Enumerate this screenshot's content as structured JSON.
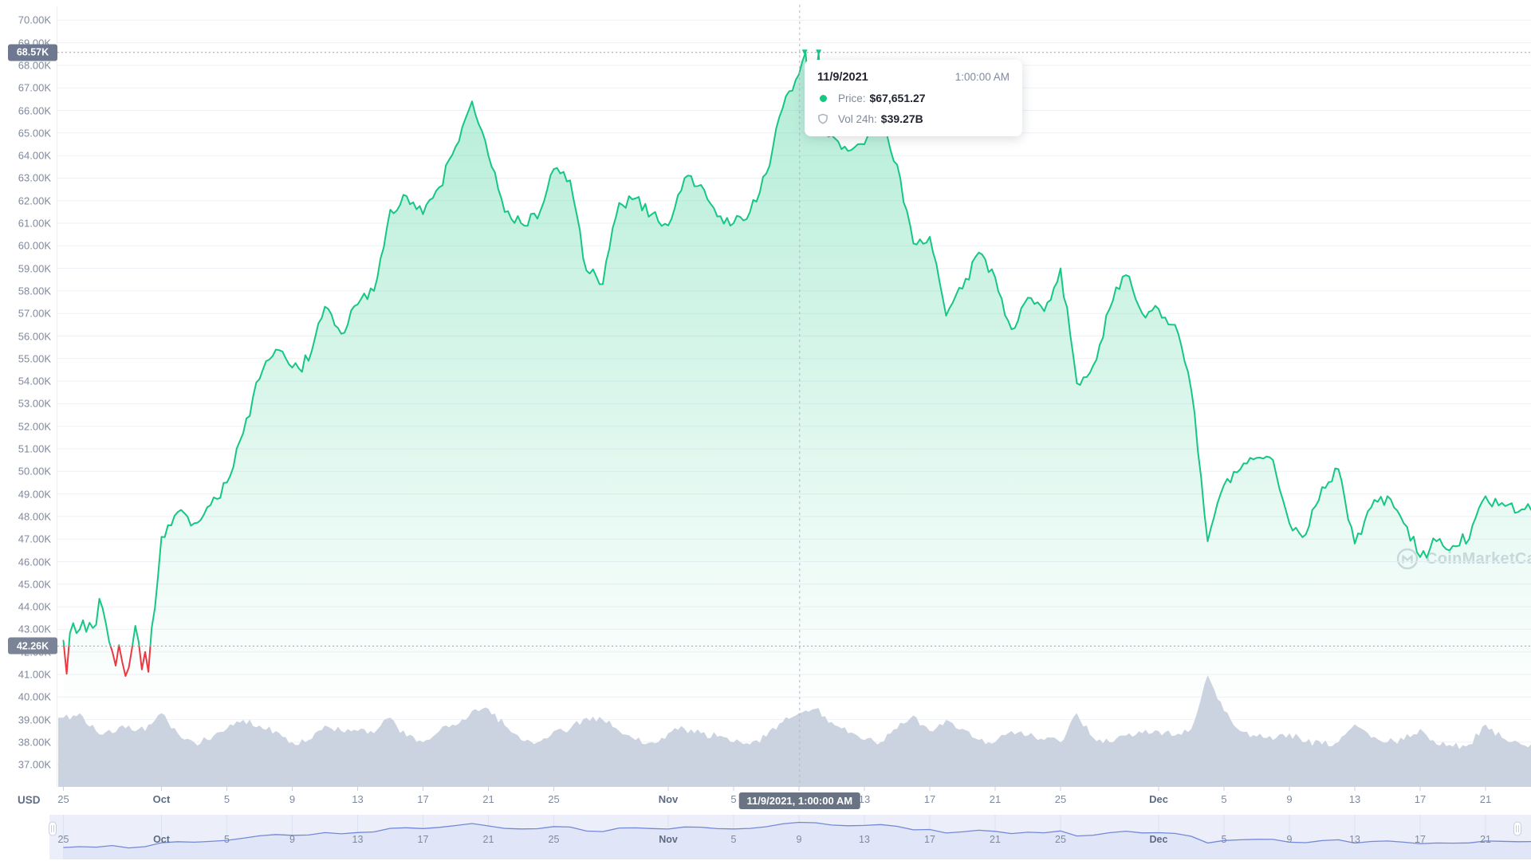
{
  "currency": "USD",
  "watermark": {
    "text": "CoinMarketCap"
  },
  "y_axis": {
    "tick_labels": [
      "70.00K",
      "69.00K",
      "68.00K",
      "67.00K",
      "66.00K",
      "65.00K",
      "64.00K",
      "63.00K",
      "62.00K",
      "61.00K",
      "60.00K",
      "59.00K",
      "58.00K",
      "57.00K",
      "56.00K",
      "55.00K",
      "54.00K",
      "53.00K",
      "52.00K",
      "51.00K",
      "50.00K",
      "49.00K",
      "48.00K",
      "47.00K",
      "46.00K",
      "45.00K",
      "44.00K",
      "43.00K",
      "42.00K",
      "41.00K",
      "40.00K",
      "39.00K",
      "38.00K",
      "37.00K"
    ],
    "ath_badge": "68.57K",
    "current_price_badge": "42.26K"
  },
  "x_axis": {
    "ticks": [
      {
        "label": "25",
        "day": 0
      },
      {
        "label": "Oct",
        "day": 6,
        "bold": true
      },
      {
        "label": "5",
        "day": 10
      },
      {
        "label": "9",
        "day": 14
      },
      {
        "label": "13",
        "day": 18
      },
      {
        "label": "17",
        "day": 22
      },
      {
        "label": "21",
        "day": 26
      },
      {
        "label": "25",
        "day": 30
      },
      {
        "label": "Nov",
        "day": 37,
        "bold": true
      },
      {
        "label": "5",
        "day": 41
      },
      {
        "label": "9",
        "day": 45,
        "hidden_by_badge": true
      },
      {
        "label": "13",
        "day": 49
      },
      {
        "label": "17",
        "day": 53
      },
      {
        "label": "21",
        "day": 57
      },
      {
        "label": "25",
        "day": 61
      },
      {
        "label": "Dec",
        "day": 67,
        "bold": true
      },
      {
        "label": "5",
        "day": 71
      },
      {
        "label": "9",
        "day": 75
      },
      {
        "label": "13",
        "day": 79
      },
      {
        "label": "17",
        "day": 83
      },
      {
        "label": "21",
        "day": 87
      }
    ],
    "crosshair_badge": "11/9/2021, 1:00:00 AM"
  },
  "tooltip": {
    "date": "11/9/2021",
    "time": "1:00:00 AM",
    "price_label": "Price:",
    "price_value": "$67,651.27",
    "vol_label": "Vol 24h:",
    "vol_value": "$39.27B"
  },
  "colors": {
    "green": "#16c784",
    "red": "#ea3943",
    "fill_green_top": "rgba(22,199,132,0.33)",
    "fill_green_bottom": "rgba(22,199,132,0)",
    "volume": "#ccd3e0",
    "gridline": "#eff1f6",
    "axis_line": "#eceef4",
    "dotted_line": "#9ba3b2",
    "crosshair": "#b0b6c3",
    "tick_mark": "#ccd2dd",
    "nav_bg": "#eceffa",
    "nav_fill": "#e0e6f7",
    "nav_line": "#7488d8",
    "nav_grid": "#dde2f2",
    "handle_border": "#c8cedb"
  },
  "chart_data": {
    "type": "line",
    "title": "",
    "xlabel": "",
    "ylabel": "Price (USD)",
    "x_start_date": "2021-09-25",
    "x_end_date": "2021-12-24",
    "x_unit": "day",
    "ylim": [
      37000,
      70000
    ],
    "y_gridline_step": 1000,
    "legend": "none",
    "ath_line_k": 68.57,
    "current_price_line_k": 42.26,
    "line_color_rule": "green above current price 42.26K, red below",
    "crosshair": {
      "day_index": 45,
      "date": "11/9/2021",
      "time": "1:00:00 AM",
      "price_usd": 67651.27,
      "vol_24h": "$39.27B"
    },
    "ath_touch_days": [
      45.35,
      46.2
    ],
    "series": [
      {
        "name": "Price",
        "unit": "USD thousands",
        "values": [
          42.3,
          43.2,
          42.7,
          44.3,
          41.9,
          43.2,
          47.1,
          48.2,
          47.7,
          48.5,
          49.5,
          51.7,
          54.1,
          55.4,
          54.6,
          54.9,
          57.3,
          56.1,
          57.4,
          58.0,
          61.6,
          62.2,
          61.4,
          62.6,
          64.4,
          66.4,
          64.0,
          61.5,
          61.0,
          61.2,
          63.4,
          62.9,
          58.9,
          58.3,
          61.9,
          62.1,
          61.4,
          60.9,
          63.0,
          62.7,
          61.3,
          61.0,
          61.5,
          63.2,
          66.1,
          67.6,
          67.2,
          64.9,
          64.2,
          64.5,
          65.4,
          63.6,
          60.1,
          60.4,
          56.9,
          58.1,
          59.7,
          58.6,
          56.3,
          57.7,
          57.1,
          59.0,
          53.9,
          54.7,
          57.2,
          58.7,
          57.0,
          57.2,
          56.5,
          53.6,
          46.9,
          49.4,
          50.1,
          50.6,
          50.5,
          47.7,
          47.2,
          49.3,
          50.1,
          46.8,
          48.4,
          48.9,
          47.7,
          46.2,
          46.9,
          46.7,
          47.0,
          48.9,
          48.6,
          48.2,
          48.3
        ]
      },
      {
        "name": "Vol 24h",
        "unit": "relative height 0-1 (axis not labeled)",
        "values": [
          0.62,
          0.66,
          0.5,
          0.48,
          0.55,
          0.5,
          0.66,
          0.48,
          0.4,
          0.42,
          0.52,
          0.6,
          0.55,
          0.5,
          0.4,
          0.42,
          0.55,
          0.5,
          0.5,
          0.48,
          0.62,
          0.45,
          0.4,
          0.5,
          0.55,
          0.68,
          0.7,
          0.55,
          0.42,
          0.4,
          0.5,
          0.52,
          0.62,
          0.6,
          0.5,
          0.42,
          0.4,
          0.48,
          0.52,
          0.48,
          0.45,
          0.4,
          0.38,
          0.45,
          0.58,
          0.66,
          0.7,
          0.58,
          0.48,
          0.42,
          0.4,
          0.52,
          0.64,
          0.5,
          0.6,
          0.52,
          0.42,
          0.4,
          0.5,
          0.46,
          0.42,
          0.4,
          0.66,
          0.44,
          0.4,
          0.46,
          0.48,
          0.5,
          0.46,
          0.52,
          1.0,
          0.68,
          0.5,
          0.45,
          0.42,
          0.48,
          0.4,
          0.38,
          0.4,
          0.56,
          0.44,
          0.4,
          0.42,
          0.52,
          0.38,
          0.36,
          0.38,
          0.56,
          0.44,
          0.4,
          0.38
        ]
      }
    ],
    "intraday_overrides": {
      "0": [
        42.5,
        41.1,
        42.9,
        43.2,
        42.8
      ],
      "1": [
        43.0,
        43.4,
        42.9,
        43.3,
        43.1
      ],
      "2": [
        43.2,
        44.35,
        43.9,
        43.3,
        42.5
      ],
      "3": [
        42.0,
        41.35,
        42.3,
        41.6,
        40.95
      ],
      "4": [
        41.3,
        42.2,
        43.15,
        42.5,
        41.15
      ],
      "5": [
        42.0,
        41.15,
        43.0,
        44.0,
        45.5
      ],
      "45": [
        67.6,
        68.2,
        68.6,
        67.0,
        67.2
      ],
      "46": [
        67.2,
        68.57,
        66.3,
        65.2,
        64.8
      ]
    },
    "navigator_series": "same as Price series (full range selected)"
  }
}
